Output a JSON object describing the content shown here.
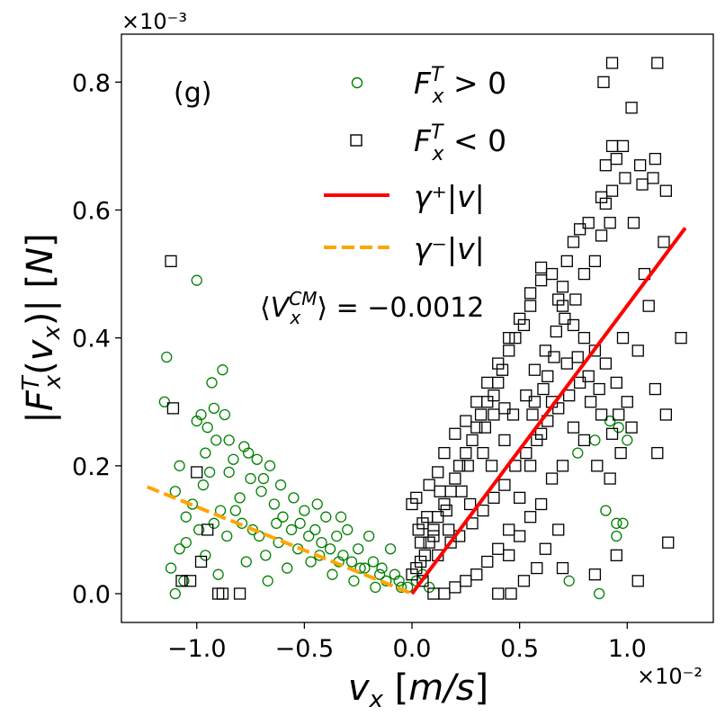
{
  "chart_data": {
    "type": "scatter",
    "panel_label": "(g)",
    "xlabel": "v_x [m/s]",
    "ylabel": "|F_x^T(v_x)| [N]",
    "x_multiplier": "×10⁻²",
    "y_multiplier": "×10⁻³",
    "xlim": [
      -1.35,
      1.4
    ],
    "ylim": [
      -0.045,
      0.875
    ],
    "x_scale_label": "1e-2",
    "y_scale_label": "1e-3",
    "x_ticks": [
      -1.0,
      -0.5,
      0.0,
      0.5,
      1.0
    ],
    "x_tick_labels": [
      "−1.0",
      "−0.5",
      "0.0",
      "0.5",
      "1.0"
    ],
    "y_ticks": [
      0.0,
      0.2,
      0.4,
      0.6,
      0.8
    ],
    "y_tick_labels": [
      "0.0",
      "0.2",
      "0.4",
      "0.6",
      "0.8"
    ],
    "grid": false,
    "legend_position": "top-center",
    "annotation": "⟨V_x^CM⟩ = −0.0012",
    "series": [
      {
        "name": "F_x^T > 0",
        "kind": "scatter",
        "marker": "circle",
        "color": "#008000",
        "points": [
          [
            -1.15,
            0.3
          ],
          [
            -1.14,
            0.37
          ],
          [
            -1.0,
            0.49
          ],
          [
            -0.88,
            0.35
          ],
          [
            -0.93,
            0.33
          ],
          [
            -0.98,
            0.28
          ],
          [
            -0.92,
            0.29
          ],
          [
            -1.0,
            0.27
          ],
          [
            -0.95,
            0.26
          ],
          [
            -0.96,
            0.22
          ],
          [
            -0.91,
            0.24
          ],
          [
            -0.85,
            0.24
          ],
          [
            -0.78,
            0.23
          ],
          [
            -0.72,
            0.21
          ],
          [
            -0.66,
            0.2
          ],
          [
            -0.69,
            0.18
          ],
          [
            -1.05,
            0.12
          ],
          [
            -1.08,
            0.2
          ],
          [
            -1.1,
            0.16
          ],
          [
            -1.02,
            0.14
          ],
          [
            -1.05,
            0.08
          ],
          [
            -1.08,
            0.07
          ],
          [
            -1.1,
            0.0
          ],
          [
            -1.06,
            0.02
          ],
          [
            -0.96,
            0.06
          ],
          [
            -0.9,
            0.03
          ],
          [
            -0.82,
            0.13
          ],
          [
            -0.8,
            0.15
          ],
          [
            -0.75,
            0.18
          ],
          [
            -0.7,
            0.16
          ],
          [
            -0.64,
            0.14
          ],
          [
            -0.6,
            0.12
          ],
          [
            -0.56,
            0.1
          ],
          [
            -0.52,
            0.11
          ],
          [
            -0.48,
            0.09
          ],
          [
            -0.45,
            0.1
          ],
          [
            -0.42,
            0.08
          ],
          [
            -0.38,
            0.07
          ],
          [
            -0.35,
            0.09
          ],
          [
            -0.32,
            0.06
          ],
          [
            -0.28,
            0.05
          ],
          [
            -0.25,
            0.07
          ],
          [
            -0.22,
            0.04
          ],
          [
            -0.18,
            0.05
          ],
          [
            -0.15,
            0.03
          ],
          [
            -0.12,
            0.02
          ],
          [
            -0.08,
            0.03
          ],
          [
            -0.05,
            0.01
          ],
          [
            -0.02,
            0.01
          ],
          [
            -0.1,
            0.07
          ],
          [
            -0.2,
            0.09
          ],
          [
            -0.3,
            0.1
          ],
          [
            -0.4,
            0.12
          ],
          [
            -0.5,
            0.13
          ],
          [
            -0.55,
            0.15
          ],
          [
            -0.62,
            0.08
          ],
          [
            -0.68,
            0.06
          ],
          [
            -0.74,
            0.1
          ],
          [
            -0.86,
            0.09
          ],
          [
            -0.92,
            0.11
          ],
          [
            -0.97,
            0.17
          ],
          [
            -0.85,
            0.19
          ],
          [
            -0.77,
            0.05
          ],
          [
            -0.67,
            0.02
          ],
          [
            -0.58,
            0.04
          ],
          [
            -0.47,
            0.05
          ],
          [
            -0.37,
            0.03
          ],
          [
            -0.27,
            0.02
          ],
          [
            -0.17,
            0.01
          ],
          [
            -0.33,
            0.12
          ],
          [
            -0.44,
            0.14
          ],
          [
            -0.61,
            0.17
          ],
          [
            -0.83,
            0.21
          ],
          [
            -0.94,
            0.19
          ],
          [
            -0.99,
            0.1
          ],
          [
            -0.89,
            0.13
          ],
          [
            -0.79,
            0.11
          ],
          [
            -0.71,
            0.09
          ],
          [
            -0.63,
            0.11
          ],
          [
            -0.53,
            0.07
          ],
          [
            -0.43,
            0.06
          ],
          [
            -0.34,
            0.05
          ],
          [
            -0.24,
            0.04
          ],
          [
            -0.14,
            0.04
          ],
          [
            -0.06,
            0.02
          ],
          [
            0.02,
            0.02
          ],
          [
            0.05,
            0.03
          ],
          [
            0.08,
            0.01
          ],
          [
            0.9,
            0.13
          ],
          [
            0.95,
            0.11
          ],
          [
            1.0,
            0.24
          ],
          [
            0.98,
            0.11
          ],
          [
            0.96,
            0.26
          ],
          [
            0.95,
            0.09
          ],
          [
            0.87,
            0.0
          ],
          [
            0.73,
            0.02
          ],
          [
            0.92,
            0.27
          ],
          [
            0.85,
            0.24
          ],
          [
            0.77,
            0.22
          ],
          [
            -1.12,
            0.04
          ],
          [
            -0.87,
            0.28
          ],
          [
            -0.76,
            0.22
          ]
        ]
      },
      {
        "name": "F_x^T < 0",
        "kind": "scatter",
        "marker": "square",
        "color": "#000000",
        "points": [
          [
            -1.12,
            0.52
          ],
          [
            -1.11,
            0.29
          ],
          [
            -1.0,
            0.19
          ],
          [
            -0.98,
            0.05
          ],
          [
            -0.9,
            0.0
          ],
          [
            -0.88,
            0.0
          ],
          [
            -0.8,
            0.0
          ],
          [
            -1.03,
            0.02
          ],
          [
            -1.07,
            0.02
          ],
          [
            -0.95,
            0.1
          ],
          [
            0.93,
            0.83
          ],
          [
            1.14,
            0.83
          ],
          [
            0.89,
            0.8
          ],
          [
            1.02,
            0.76
          ],
          [
            0.93,
            0.7
          ],
          [
            0.98,
            0.7
          ],
          [
            0.9,
            0.67
          ],
          [
            0.95,
            0.68
          ],
          [
            1.13,
            0.68
          ],
          [
            1.06,
            0.67
          ],
          [
            0.99,
            0.65
          ],
          [
            1.12,
            0.65
          ],
          [
            1.18,
            0.63
          ],
          [
            0.88,
            0.62
          ],
          [
            0.9,
            0.61
          ],
          [
            0.93,
            0.63
          ],
          [
            1.07,
            0.64
          ],
          [
            1.17,
            0.55
          ],
          [
            1.25,
            0.4
          ],
          [
            1.13,
            0.32
          ],
          [
            1.18,
            0.28
          ],
          [
            1.14,
            0.22
          ],
          [
            1.19,
            0.08
          ],
          [
            1.05,
            0.02
          ],
          [
            0.95,
            0.06
          ],
          [
            0.85,
            0.03
          ],
          [
            0.7,
            0.04
          ],
          [
            0.82,
            0.58
          ],
          [
            0.78,
            0.57
          ],
          [
            0.75,
            0.55
          ],
          [
            0.72,
            0.52
          ],
          [
            0.7,
            0.48
          ],
          [
            0.68,
            0.46
          ],
          [
            0.8,
            0.5
          ],
          [
            0.85,
            0.52
          ],
          [
            0.88,
            0.56
          ],
          [
            0.92,
            0.58
          ],
          [
            1.03,
            0.58
          ],
          [
            1.08,
            0.5
          ],
          [
            1.1,
            0.45
          ],
          [
            1.05,
            0.38
          ],
          [
            0.98,
            0.4
          ],
          [
            0.6,
            0.51
          ],
          [
            0.55,
            0.45
          ],
          [
            0.52,
            0.42
          ],
          [
            0.48,
            0.4
          ],
          [
            0.45,
            0.38
          ],
          [
            0.42,
            0.35
          ],
          [
            0.4,
            0.33
          ],
          [
            0.38,
            0.31
          ],
          [
            0.35,
            0.3
          ],
          [
            0.32,
            0.28
          ],
          [
            0.3,
            0.26
          ],
          [
            0.28,
            0.24
          ],
          [
            0.25,
            0.22
          ],
          [
            0.22,
            0.2
          ],
          [
            0.2,
            0.18
          ],
          [
            0.18,
            0.16
          ],
          [
            0.15,
            0.14
          ],
          [
            0.12,
            0.12
          ],
          [
            0.1,
            0.1
          ],
          [
            0.08,
            0.08
          ],
          [
            0.06,
            0.06
          ],
          [
            0.04,
            0.05
          ],
          [
            0.02,
            0.04
          ],
          [
            0.0,
            0.03
          ],
          [
            0.0,
            0.14
          ],
          [
            0.02,
            0.15
          ],
          [
            0.05,
            0.11
          ],
          [
            0.08,
            0.17
          ],
          [
            0.12,
            0.19
          ],
          [
            0.15,
            0.22
          ],
          [
            0.2,
            0.25
          ],
          [
            0.25,
            0.27
          ],
          [
            0.3,
            0.3
          ],
          [
            0.35,
            0.33
          ],
          [
            0.4,
            0.36
          ],
          [
            0.45,
            0.4
          ],
          [
            0.5,
            0.43
          ],
          [
            0.55,
            0.47
          ],
          [
            0.6,
            0.49
          ],
          [
            0.65,
            0.5
          ],
          [
            0.7,
            0.45
          ],
          [
            0.75,
            0.42
          ],
          [
            0.8,
            0.4
          ],
          [
            0.85,
            0.38
          ],
          [
            0.9,
            0.36
          ],
          [
            0.95,
            0.33
          ],
          [
            1.0,
            0.3
          ],
          [
            0.65,
            0.3
          ],
          [
            0.6,
            0.25
          ],
          [
            0.55,
            0.2
          ],
          [
            0.5,
            0.15
          ],
          [
            0.45,
            0.1
          ],
          [
            0.4,
            0.07
          ],
          [
            0.35,
            0.05
          ],
          [
            0.3,
            0.03
          ],
          [
            0.25,
            0.02
          ],
          [
            0.2,
            0.01
          ],
          [
            0.15,
            0.0
          ],
          [
            0.1,
            0.0
          ],
          [
            0.05,
            0.02
          ],
          [
            0.12,
            0.06
          ],
          [
            0.18,
            0.08
          ],
          [
            0.22,
            0.09
          ],
          [
            0.28,
            0.11
          ],
          [
            0.33,
            0.13
          ],
          [
            0.38,
            0.15
          ],
          [
            0.43,
            0.17
          ],
          [
            0.48,
            0.2
          ],
          [
            0.53,
            0.22
          ],
          [
            0.58,
            0.24
          ],
          [
            0.63,
            0.27
          ],
          [
            0.68,
            0.29
          ],
          [
            0.73,
            0.31
          ],
          [
            0.78,
            0.33
          ],
          [
            0.83,
            0.3
          ],
          [
            0.88,
            0.28
          ],
          [
            0.93,
            0.25
          ],
          [
            0.97,
            0.22
          ],
          [
            0.7,
            0.2
          ],
          [
            0.65,
            0.18
          ],
          [
            0.6,
            0.14
          ],
          [
            0.55,
            0.12
          ],
          [
            0.5,
            0.09
          ],
          [
            0.45,
            0.06
          ],
          [
            0.75,
            0.26
          ],
          [
            0.8,
            0.24
          ],
          [
            0.86,
            0.2
          ],
          [
            0.92,
            0.18
          ],
          [
            0.68,
            0.1
          ],
          [
            0.62,
            0.07
          ],
          [
            0.58,
            0.04
          ],
          [
            0.52,
            0.02
          ],
          [
            0.46,
            0.0
          ],
          [
            0.4,
            0.0
          ],
          [
            0.38,
            0.28
          ],
          [
            0.34,
            0.26
          ],
          [
            0.26,
            0.2
          ],
          [
            0.16,
            0.13
          ],
          [
            0.1,
            0.09
          ],
          [
            0.07,
            0.12
          ],
          [
            0.04,
            0.08
          ],
          [
            0.03,
            0.1
          ],
          [
            0.13,
            0.16
          ],
          [
            0.23,
            0.16
          ],
          [
            0.43,
            0.24
          ],
          [
            0.57,
            0.35
          ],
          [
            0.62,
            0.38
          ],
          [
            0.67,
            0.41
          ],
          [
            0.72,
            0.36
          ],
          [
            0.77,
            0.37
          ],
          [
            0.82,
            0.34
          ],
          [
            0.87,
            0.32
          ],
          [
            0.96,
            0.28
          ],
          [
            1.02,
            0.26
          ],
          [
            0.57,
            0.3
          ],
          [
            0.47,
            0.28
          ],
          [
            0.37,
            0.2
          ],
          [
            0.27,
            0.14
          ],
          [
            0.17,
            0.1
          ],
          [
            0.63,
            0.34
          ],
          [
            0.53,
            0.31
          ],
          [
            0.43,
            0.29
          ],
          [
            0.33,
            0.22
          ],
          [
            0.76,
            0.46
          ],
          [
            0.71,
            0.43
          ],
          [
            0.66,
            0.37
          ],
          [
            0.61,
            0.32
          ],
          [
            0.56,
            0.28
          ]
        ]
      },
      {
        "name": "γ⁺|v|",
        "kind": "line",
        "style": "solid",
        "color": "#ff0000",
        "points": [
          [
            0.0,
            0.0
          ],
          [
            1.27,
            0.572
          ]
        ]
      },
      {
        "name": "γ⁻|v|",
        "kind": "line",
        "style": "dashed",
        "color": "#ffa500",
        "points": [
          [
            -1.23,
            0.167
          ],
          [
            0.0,
            0.0
          ]
        ]
      }
    ]
  },
  "legend": {
    "pos_label": "F",
    "neg_label": "F",
    "gplus_label": "γ⁺|v|",
    "gminus_label": "γ⁻|v|"
  }
}
